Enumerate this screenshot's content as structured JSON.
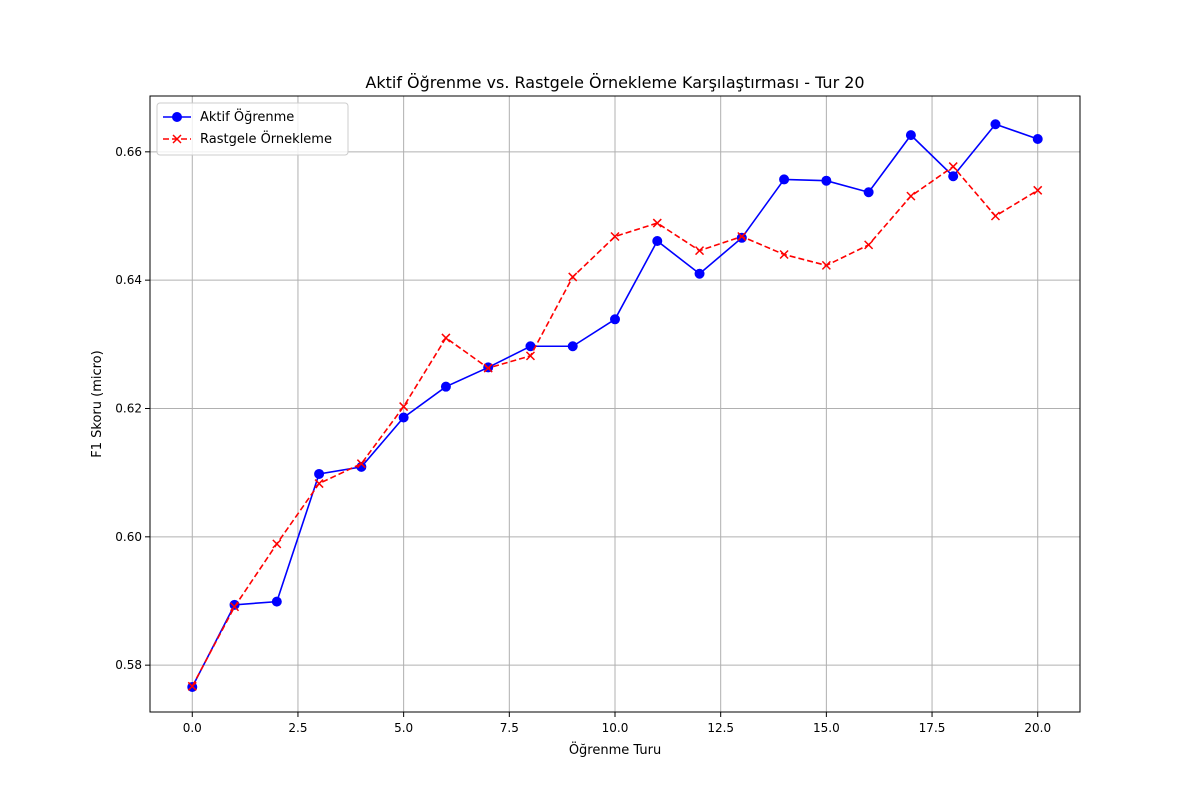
{
  "chart_data": {
    "type": "line",
    "title": "Aktif Öğrenme vs. Rastgele Örnekleme Karşılaştırması - Tur 20",
    "xlabel": "Öğrenme Turu",
    "ylabel": "F1 Skoru (micro)",
    "xlim": [
      -1.0,
      21.0
    ],
    "ylim": [
      0.5727,
      0.6687
    ],
    "x_ticks": [
      0.0,
      2.5,
      5.0,
      7.5,
      10.0,
      12.5,
      15.0,
      17.5,
      20.0
    ],
    "x_tick_labels": [
      "0.0",
      "2.5",
      "5.0",
      "7.5",
      "10.0",
      "12.5",
      "15.0",
      "17.5",
      "20.0"
    ],
    "y_ticks": [
      0.58,
      0.6,
      0.62,
      0.64,
      0.66
    ],
    "y_tick_labels": [
      "0.58",
      "0.60",
      "0.62",
      "0.64",
      "0.66"
    ],
    "grid": true,
    "legend_position": "top-left",
    "x": [
      0,
      1,
      2,
      3,
      4,
      5,
      6,
      7,
      8,
      9,
      10,
      11,
      12,
      13,
      14,
      15,
      16,
      17,
      18,
      19,
      20
    ],
    "series": [
      {
        "name": "Aktif Öğrenme",
        "color": "#0000ff",
        "line_style": "solid",
        "marker": "circle",
        "values": [
          0.5766,
          0.5894,
          0.5899,
          0.6098,
          0.6109,
          0.6186,
          0.6234,
          0.6264,
          0.6297,
          0.6297,
          0.6339,
          0.6461,
          0.641,
          0.6466,
          0.6557,
          0.6555,
          0.6537,
          0.6626,
          0.6562,
          0.6643,
          0.662
        ]
      },
      {
        "name": "Rastgele Örnekleme",
        "color": "#ff0000",
        "line_style": "dashed",
        "marker": "x",
        "values": [
          0.5767,
          0.5891,
          0.5989,
          0.6083,
          0.6114,
          0.6203,
          0.631,
          0.6263,
          0.6282,
          0.6405,
          0.6468,
          0.6489,
          0.6446,
          0.6468,
          0.644,
          0.6423,
          0.6455,
          0.6531,
          0.6577,
          0.65,
          0.654
        ]
      }
    ]
  }
}
